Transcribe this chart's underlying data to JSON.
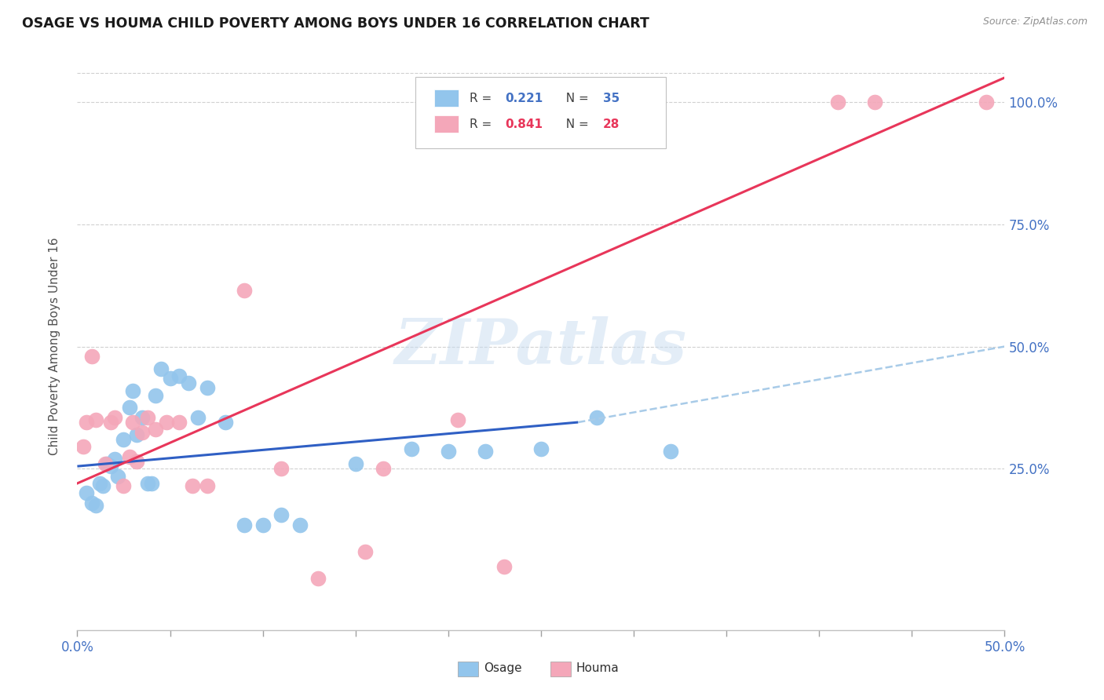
{
  "title": "OSAGE VS HOUMA CHILD POVERTY AMONG BOYS UNDER 16 CORRELATION CHART",
  "source": "Source: ZipAtlas.com",
  "ylabel": "Child Poverty Among Boys Under 16",
  "xlim": [
    0.0,
    0.5
  ],
  "ylim": [
    -0.08,
    1.08
  ],
  "xticks": [
    0.0,
    0.05,
    0.1,
    0.15,
    0.2,
    0.25,
    0.3,
    0.35,
    0.4,
    0.45,
    0.5
  ],
  "yticks": [
    0.25,
    0.5,
    0.75,
    1.0
  ],
  "ytick_labels": [
    "25.0%",
    "50.0%",
    "75.0%",
    "100.0%"
  ],
  "xtick_labels": [
    "0.0%",
    "",
    "",
    "",
    "",
    "",
    "",
    "",
    "",
    "",
    "50.0%"
  ],
  "osage_color": "#92C5EC",
  "houma_color": "#F4A7B9",
  "osage_line_color": "#2F5FC4",
  "houma_line_color": "#E8365A",
  "dashed_line_color": "#A8CBE8",
  "watermark_text": "ZIPatlas",
  "osage_x": [
    0.005,
    0.008,
    0.01,
    0.012,
    0.014,
    0.016,
    0.018,
    0.02,
    0.022,
    0.025,
    0.028,
    0.03,
    0.032,
    0.035,
    0.038,
    0.04,
    0.042,
    0.045,
    0.05,
    0.055,
    0.06,
    0.065,
    0.07,
    0.08,
    0.09,
    0.1,
    0.11,
    0.12,
    0.15,
    0.18,
    0.2,
    0.22,
    0.25,
    0.28,
    0.32
  ],
  "osage_y": [
    0.2,
    0.18,
    0.175,
    0.22,
    0.215,
    0.26,
    0.255,
    0.27,
    0.235,
    0.31,
    0.375,
    0.41,
    0.32,
    0.355,
    0.22,
    0.22,
    0.4,
    0.455,
    0.435,
    0.44,
    0.425,
    0.355,
    0.415,
    0.345,
    0.135,
    0.135,
    0.155,
    0.135,
    0.26,
    0.29,
    0.285,
    0.285,
    0.29,
    0.355,
    0.285
  ],
  "houma_x": [
    0.003,
    0.005,
    0.008,
    0.01,
    0.015,
    0.018,
    0.02,
    0.025,
    0.028,
    0.03,
    0.032,
    0.035,
    0.038,
    0.042,
    0.048,
    0.055,
    0.062,
    0.07,
    0.09,
    0.11,
    0.13,
    0.155,
    0.165,
    0.205,
    0.23,
    0.41,
    0.43,
    0.49
  ],
  "houma_y": [
    0.295,
    0.345,
    0.48,
    0.35,
    0.26,
    0.345,
    0.355,
    0.215,
    0.275,
    0.345,
    0.265,
    0.325,
    0.355,
    0.33,
    0.345,
    0.345,
    0.215,
    0.215,
    0.615,
    0.25,
    0.025,
    0.08,
    0.25,
    0.35,
    0.05,
    1.0,
    1.0,
    1.0
  ],
  "osage_trend_x": [
    0.0,
    0.27
  ],
  "osage_trend_y": [
    0.255,
    0.345
  ],
  "dashed_trend_x": [
    0.27,
    0.5
  ],
  "dashed_trend_y": [
    0.345,
    0.5
  ],
  "houma_trend_x": [
    0.0,
    0.5
  ],
  "houma_trend_y": [
    0.22,
    1.05
  ]
}
